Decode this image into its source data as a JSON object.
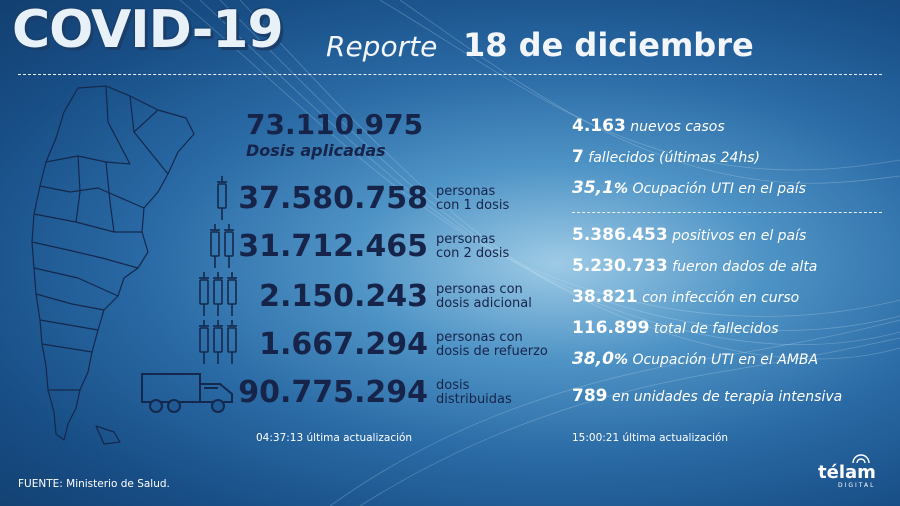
{
  "header": {
    "title": "COVID-19",
    "reporte_label": "Reporte",
    "date": "18 de diciembre"
  },
  "vaccination": {
    "total_doses": "73.110.975",
    "total_doses_label": "Dosis aplicadas",
    "rows": [
      {
        "value": "37.580.758",
        "label_line1": "personas",
        "label_line2": "con 1 dosis",
        "icon": "syringe-1-icon"
      },
      {
        "value": "31.712.465",
        "label_line1": "personas",
        "label_line2": "con 2 dosis",
        "icon": "syringe-2-icon"
      },
      {
        "value": "2.150.243",
        "label_line1": "personas con",
        "label_line2": "dosis adicional",
        "icon": "syringe-3-icon"
      },
      {
        "value": "1.667.294",
        "label_line1": "personas con",
        "label_line2": "dosis de refuerzo",
        "icon": "syringe-3b-icon"
      },
      {
        "value": "90.775.294",
        "label_line1": "dosis",
        "label_line2": "distribuidas",
        "icon": "truck-icon"
      }
    ],
    "update_time": "04:37:13",
    "update_label": "última actualización"
  },
  "daily": [
    {
      "value": "4.163",
      "label": "nuevos casos"
    },
    {
      "value": "7",
      "label": "fallecidos (últimas 24hs)"
    },
    {
      "value": "35,1",
      "unit": "%",
      "label": "Ocupación UTI en el país"
    }
  ],
  "cumulative": [
    {
      "value": "5.386.453",
      "label": "positivos en el país"
    },
    {
      "value": "5.230.733",
      "label": "fueron dados de alta"
    },
    {
      "value": "38.821",
      "label": "con infección en curso"
    },
    {
      "value": "116.899",
      "label": "total de fallecidos"
    },
    {
      "value": "38,0",
      "unit": "%",
      "label": "Ocupación UTI en el AMBA"
    },
    {
      "value": "789",
      "label": "en unidades de terapia intensiva"
    }
  ],
  "stats_update": {
    "time": "15:00:21",
    "label": "última actualización"
  },
  "footer": {
    "source": "FUENTE: Ministerio de Salud."
  },
  "logo": {
    "name": "télam",
    "sub": "DIGITAL"
  },
  "colors": {
    "text_dark": "#17244a",
    "text_light": "#ffffff",
    "background": "#2a6aa5"
  }
}
